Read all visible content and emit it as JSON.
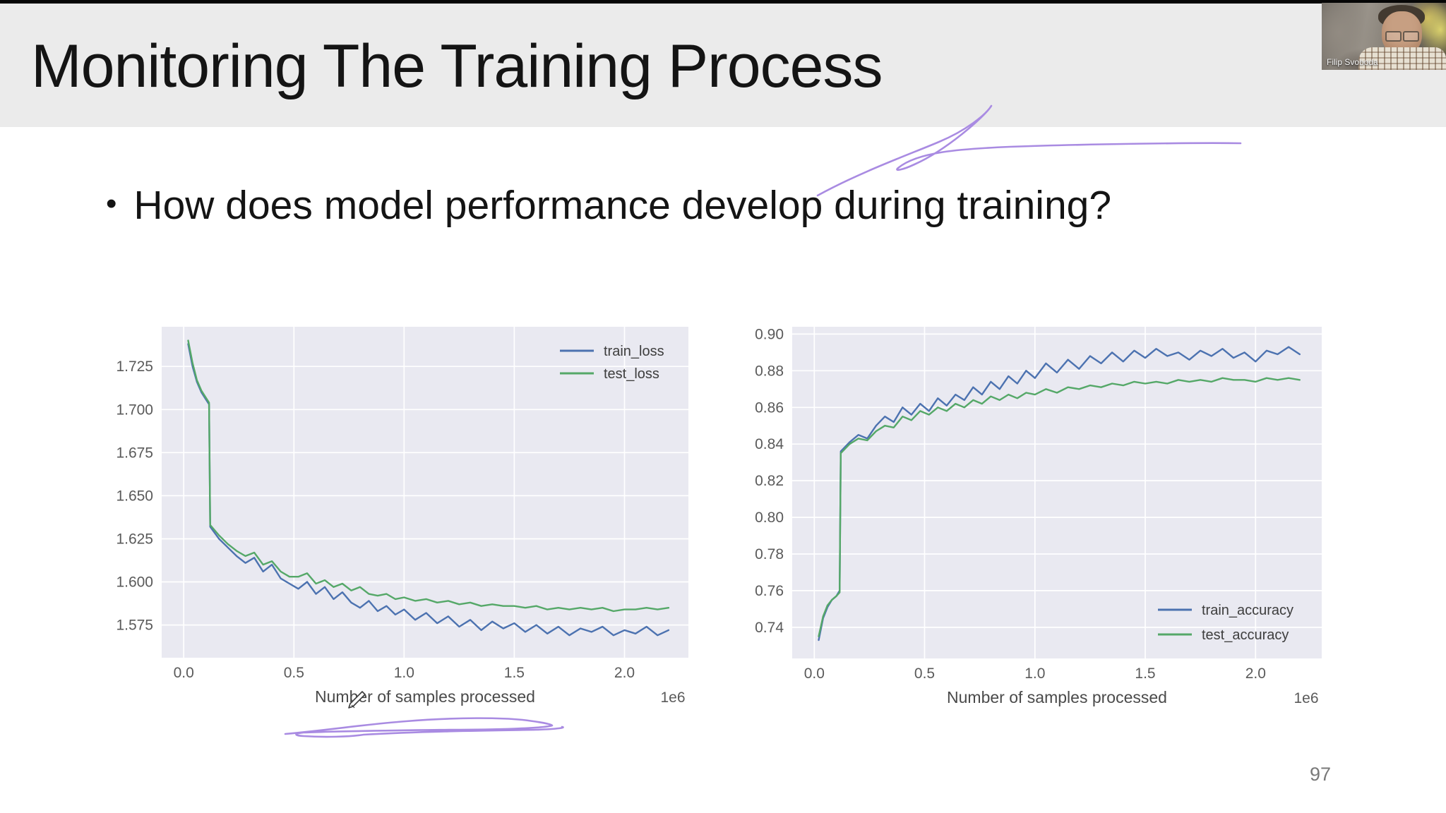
{
  "slide": {
    "title": "Monitoring The Training Process",
    "bullet_marker": "•",
    "bullet": "How does model performance develop during training?",
    "page_number": "97"
  },
  "webcam": {
    "name": "Filip Svoboda"
  },
  "colors": {
    "header_bg": "#ebebeb",
    "slide_bg": "#ffffff",
    "title_color": "#141414",
    "annotation_purple": "#a98be2",
    "page_number_gray": "#797979"
  },
  "chart_style": {
    "plot_bg": "#e9e9f1",
    "grid_color": "#ffffff",
    "tick_color": "#5a5a5a",
    "label_color": "#4a4a4a",
    "train_color": "#4c72b0",
    "test_color": "#55a868"
  },
  "chart_data": [
    {
      "type": "line",
      "title": "",
      "xlabel": "Number of samples processed",
      "x_offset_label": "1e6",
      "x_unit": 1000000,
      "grid": true,
      "xlim": [
        -0.1,
        2.29
      ],
      "ylim": [
        1.556,
        1.748
      ],
      "xticks": [
        0.0,
        0.5,
        1.0,
        1.5,
        2.0
      ],
      "xtick_labels": [
        "0.0",
        "0.5",
        "1.0",
        "1.5",
        "2.0"
      ],
      "yticks": [
        1.725,
        1.7,
        1.675,
        1.65,
        1.625,
        1.6,
        1.575
      ],
      "ytick_labels": [
        "1.725",
        "1.700",
        "1.675",
        "1.650",
        "1.625",
        "1.600",
        "1.575"
      ],
      "legend": {
        "position": "upper right",
        "entries": [
          {
            "name": "train_loss",
            "color": "#4c72b0"
          },
          {
            "name": "test_loss",
            "color": "#55a868"
          }
        ]
      },
      "series": [
        {
          "name": "train_loss",
          "color": "#4c72b0",
          "x": [
            0.02,
            0.04,
            0.06,
            0.08,
            0.1,
            0.115,
            0.12,
            0.16,
            0.2,
            0.24,
            0.28,
            0.32,
            0.36,
            0.4,
            0.44,
            0.48,
            0.52,
            0.56,
            0.6,
            0.64,
            0.68,
            0.72,
            0.76,
            0.8,
            0.84,
            0.88,
            0.92,
            0.96,
            1.0,
            1.05,
            1.1,
            1.15,
            1.2,
            1.25,
            1.3,
            1.35,
            1.4,
            1.45,
            1.5,
            1.55,
            1.6,
            1.65,
            1.7,
            1.75,
            1.8,
            1.85,
            1.9,
            1.95,
            2.0,
            2.05,
            2.1,
            2.15,
            2.2
          ],
          "y": [
            1.738,
            1.725,
            1.716,
            1.71,
            1.706,
            1.703,
            1.632,
            1.625,
            1.62,
            1.615,
            1.611,
            1.614,
            1.606,
            1.61,
            1.602,
            1.599,
            1.596,
            1.6,
            1.593,
            1.597,
            1.59,
            1.594,
            1.588,
            1.585,
            1.589,
            1.583,
            1.586,
            1.581,
            1.584,
            1.578,
            1.582,
            1.576,
            1.58,
            1.574,
            1.578,
            1.572,
            1.577,
            1.573,
            1.576,
            1.571,
            1.575,
            1.57,
            1.574,
            1.569,
            1.573,
            1.571,
            1.574,
            1.569,
            1.572,
            1.57,
            1.574,
            1.569,
            1.572
          ]
        },
        {
          "name": "test_loss",
          "color": "#55a868",
          "x": [
            0.02,
            0.04,
            0.06,
            0.08,
            0.1,
            0.115,
            0.12,
            0.16,
            0.2,
            0.24,
            0.28,
            0.32,
            0.36,
            0.4,
            0.44,
            0.48,
            0.52,
            0.56,
            0.6,
            0.64,
            0.68,
            0.72,
            0.76,
            0.8,
            0.84,
            0.88,
            0.92,
            0.96,
            1.0,
            1.05,
            1.1,
            1.15,
            1.2,
            1.25,
            1.3,
            1.35,
            1.4,
            1.45,
            1.5,
            1.55,
            1.6,
            1.65,
            1.7,
            1.75,
            1.8,
            1.85,
            1.9,
            1.95,
            2.0,
            2.05,
            2.1,
            2.15,
            2.2
          ],
          "y": [
            1.74,
            1.727,
            1.717,
            1.711,
            1.707,
            1.704,
            1.633,
            1.627,
            1.622,
            1.618,
            1.615,
            1.617,
            1.61,
            1.612,
            1.606,
            1.603,
            1.603,
            1.605,
            1.599,
            1.601,
            1.597,
            1.599,
            1.595,
            1.597,
            1.593,
            1.592,
            1.593,
            1.59,
            1.591,
            1.589,
            1.59,
            1.588,
            1.589,
            1.587,
            1.588,
            1.586,
            1.587,
            1.586,
            1.586,
            1.585,
            1.586,
            1.584,
            1.585,
            1.584,
            1.585,
            1.584,
            1.585,
            1.583,
            1.584,
            1.584,
            1.585,
            1.584,
            1.585
          ]
        }
      ]
    },
    {
      "type": "line",
      "title": "",
      "xlabel": "Number of samples processed",
      "x_offset_label": "1e6",
      "x_unit": 1000000,
      "grid": true,
      "xlim": [
        -0.1,
        2.3
      ],
      "ylim": [
        0.723,
        0.904
      ],
      "xticks": [
        0.0,
        0.5,
        1.0,
        1.5,
        2.0
      ],
      "xtick_labels": [
        "0.0",
        "0.5",
        "1.0",
        "1.5",
        "2.0"
      ],
      "yticks": [
        0.9,
        0.88,
        0.86,
        0.84,
        0.82,
        0.8,
        0.78,
        0.76,
        0.74
      ],
      "ytick_labels": [
        "0.90",
        "0.88",
        "0.86",
        "0.84",
        "0.82",
        "0.80",
        "0.78",
        "0.76",
        "0.74"
      ],
      "legend": {
        "position": "lower right",
        "entries": [
          {
            "name": "train_accuracy",
            "color": "#4c72b0"
          },
          {
            "name": "test_accuracy",
            "color": "#55a868"
          }
        ]
      },
      "series": [
        {
          "name": "train_accuracy",
          "color": "#4c72b0",
          "x": [
            0.02,
            0.04,
            0.06,
            0.08,
            0.1,
            0.115,
            0.12,
            0.16,
            0.2,
            0.24,
            0.28,
            0.32,
            0.36,
            0.4,
            0.44,
            0.48,
            0.52,
            0.56,
            0.6,
            0.64,
            0.68,
            0.72,
            0.76,
            0.8,
            0.84,
            0.88,
            0.92,
            0.96,
            1.0,
            1.05,
            1.1,
            1.15,
            1.2,
            1.25,
            1.3,
            1.35,
            1.4,
            1.45,
            1.5,
            1.55,
            1.6,
            1.65,
            1.7,
            1.75,
            1.8,
            1.85,
            1.9,
            1.95,
            2.0,
            2.05,
            2.1,
            2.15,
            2.2
          ],
          "y": [
            0.733,
            0.745,
            0.751,
            0.755,
            0.757,
            0.76,
            0.836,
            0.841,
            0.845,
            0.843,
            0.85,
            0.855,
            0.852,
            0.86,
            0.856,
            0.862,
            0.858,
            0.865,
            0.861,
            0.867,
            0.864,
            0.871,
            0.867,
            0.874,
            0.87,
            0.877,
            0.873,
            0.88,
            0.876,
            0.884,
            0.879,
            0.886,
            0.881,
            0.888,
            0.884,
            0.89,
            0.885,
            0.891,
            0.887,
            0.892,
            0.888,
            0.89,
            0.886,
            0.891,
            0.888,
            0.892,
            0.887,
            0.89,
            0.885,
            0.891,
            0.889,
            0.893,
            0.889
          ]
        },
        {
          "name": "test_accuracy",
          "color": "#55a868",
          "x": [
            0.02,
            0.04,
            0.06,
            0.08,
            0.1,
            0.115,
            0.12,
            0.16,
            0.2,
            0.24,
            0.28,
            0.32,
            0.36,
            0.4,
            0.44,
            0.48,
            0.52,
            0.56,
            0.6,
            0.64,
            0.68,
            0.72,
            0.76,
            0.8,
            0.84,
            0.88,
            0.92,
            0.96,
            1.0,
            1.05,
            1.1,
            1.15,
            1.2,
            1.25,
            1.3,
            1.35,
            1.4,
            1.45,
            1.5,
            1.55,
            1.6,
            1.65,
            1.7,
            1.75,
            1.8,
            1.85,
            1.9,
            1.95,
            2.0,
            2.05,
            2.1,
            2.15,
            2.2
          ],
          "y": [
            0.735,
            0.746,
            0.752,
            0.755,
            0.757,
            0.759,
            0.835,
            0.84,
            0.843,
            0.842,
            0.847,
            0.85,
            0.849,
            0.855,
            0.853,
            0.858,
            0.856,
            0.86,
            0.858,
            0.862,
            0.86,
            0.864,
            0.862,
            0.866,
            0.864,
            0.867,
            0.865,
            0.868,
            0.867,
            0.87,
            0.868,
            0.871,
            0.87,
            0.872,
            0.871,
            0.873,
            0.872,
            0.874,
            0.873,
            0.874,
            0.873,
            0.875,
            0.874,
            0.875,
            0.874,
            0.876,
            0.875,
            0.875,
            0.874,
            0.876,
            0.875,
            0.876,
            0.875
          ]
        }
      ]
    }
  ]
}
